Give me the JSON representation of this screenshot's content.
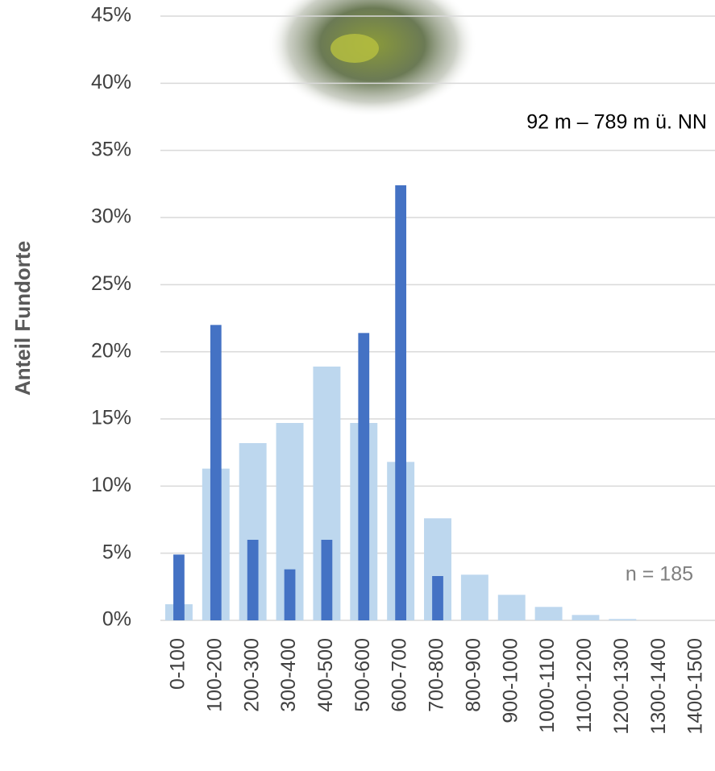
{
  "chart_data": {
    "type": "bar",
    "y_label": "Anteil Fundorte",
    "annotations": [
      "92 m – 789 m ü. NN",
      "n = 185"
    ],
    "categories": [
      "0-100",
      "100-200",
      "200-300",
      "300-400",
      "400-500",
      "500-600",
      "600-700",
      "700-800",
      "800-900",
      "900-1000",
      "1000-1100",
      "1100-1200",
      "1200-1300",
      "1300-1400",
      "1400-1500"
    ],
    "series": [
      {
        "color": "#bdd7ee",
        "values": [
          1.2,
          11.3,
          13.2,
          14.7,
          18.9,
          14.7,
          11.8,
          7.6,
          3.4,
          1.9,
          1.0,
          0.4,
          0.1,
          0,
          0
        ]
      },
      {
        "color": "#4472c4",
        "values": [
          4.9,
          22.0,
          6.0,
          3.8,
          6.0,
          21.4,
          32.4,
          3.3,
          0,
          0,
          0,
          0,
          0,
          0,
          0
        ]
      }
    ],
    "ylim": [
      0,
      45
    ],
    "yticks": [
      {
        "value": 0,
        "label": "0%"
      },
      {
        "value": 5,
        "label": "5%"
      },
      {
        "value": 10,
        "label": "10%"
      },
      {
        "value": 15,
        "label": "15%"
      },
      {
        "value": 20,
        "label": "20%"
      },
      {
        "value": 25,
        "label": "25%"
      },
      {
        "value": 30,
        "label": "30%"
      },
      {
        "value": 35,
        "label": "35%"
      },
      {
        "value": 40,
        "label": "40%"
      },
      {
        "value": 45,
        "label": "45%"
      }
    ],
    "grid": true
  }
}
